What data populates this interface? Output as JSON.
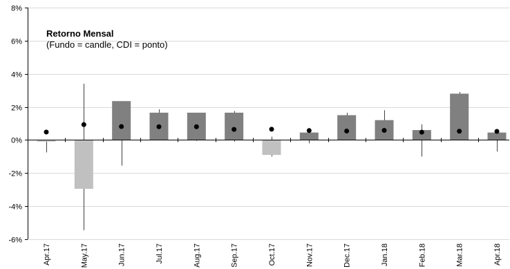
{
  "chart_data": {
    "type": "candlestick",
    "title": "Retorno Mensal",
    "subtitle": "(Fundo = candle, CDI = ponto)",
    "xlabel": "",
    "ylabel": "",
    "ylim": [
      -6,
      8
    ],
    "yticks": [
      "-6%",
      "-4%",
      "-2%",
      "0%",
      "2%",
      "4%",
      "6%",
      "8%"
    ],
    "ytick_values": [
      -6,
      -4,
      -2,
      0,
      2,
      4,
      6,
      8
    ],
    "grid": true,
    "categories": [
      "Apr.17",
      "May.17",
      "Jun.17",
      "Jul.17",
      "Aug.17",
      "Sep.17",
      "Oct.17",
      "Nov.17",
      "Dec.17",
      "Jan.18",
      "Feb.18",
      "Mar.18",
      "Apr.18"
    ],
    "fundo": {
      "value": [
        -0.1,
        -2.95,
        2.35,
        1.65,
        1.65,
        1.65,
        -0.9,
        0.45,
        1.5,
        1.2,
        0.6,
        2.8,
        0.45
      ],
      "high": [
        0.0,
        3.4,
        2.35,
        1.85,
        1.65,
        1.75,
        0.2,
        0.45,
        1.65,
        1.8,
        0.95,
        2.9,
        0.45
      ],
      "low": [
        -0.75,
        -5.45,
        -1.55,
        0.0,
        -0.05,
        -0.1,
        -1.0,
        -0.2,
        0.0,
        0.0,
        -1.0,
        0.0,
        -0.7
      ]
    },
    "cdi": [
      0.48,
      0.93,
      0.81,
      0.8,
      0.8,
      0.64,
      0.65,
      0.57,
      0.54,
      0.58,
      0.47,
      0.53,
      0.52
    ],
    "colors": {
      "positive": "#808080",
      "negative": "#c0c0c0",
      "wick": "#404040",
      "dot": "#000000",
      "grid": "#d9d9d9",
      "axis": "#000000"
    }
  }
}
